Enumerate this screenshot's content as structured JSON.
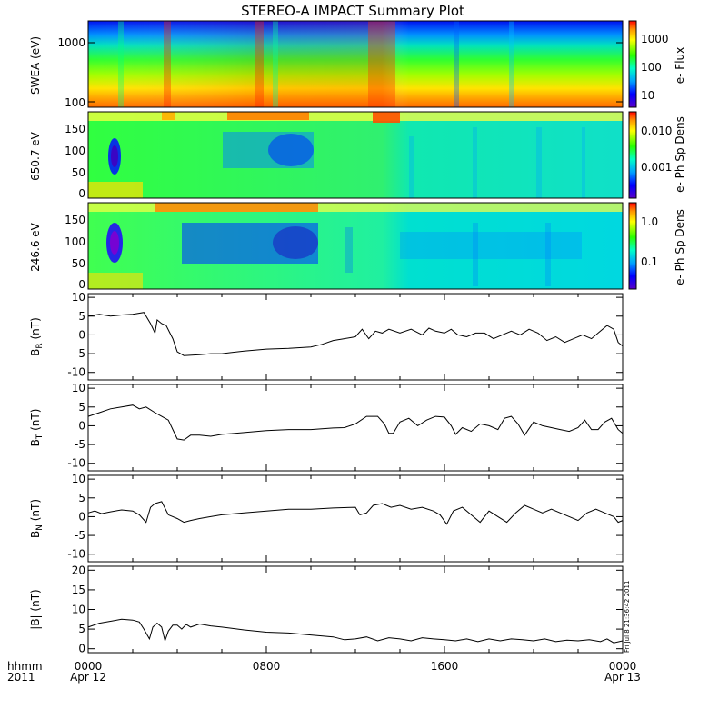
{
  "chart_data": {
    "type": "multi-panel",
    "title": "STEREO-A IMPACT Summary Plot",
    "x_axis": {
      "row1_label": "hhmm",
      "row2_label": "2011",
      "tick_labels": [
        "0000",
        "0800",
        "1600",
        "0000"
      ],
      "date_labels": [
        "Apr 12",
        "",
        "",
        "Apr 13"
      ],
      "range_hours": [
        0,
        24
      ]
    },
    "timestamp": "Fri Jul  8 21:36:42 2011",
    "spectrograms": [
      {
        "ylabel": "SWEA (eV)",
        "ytick_labels": [
          "1000",
          "100"
        ],
        "ytick_values": [
          1000,
          100
        ],
        "yscale": "log",
        "ylim": [
          90,
          2000
        ],
        "colorbar_label": "e- Flux",
        "colorbar_tick_labels": [
          "1000",
          "100",
          "10"
        ],
        "colorbar_scale": "log"
      },
      {
        "ylabel": "650.7 eV",
        "ytick_labels": [
          "150",
          "100",
          "50",
          "0"
        ],
        "ytick_values": [
          150,
          100,
          50,
          0
        ],
        "ylim": [
          -10,
          180
        ],
        "colorbar_label": "e- Ph Sp Dens",
        "colorbar_tick_labels": [
          "0.010",
          "0.001"
        ],
        "colorbar_scale": "log"
      },
      {
        "ylabel": "246.6 eV",
        "ytick_labels": [
          "150",
          "100",
          "50",
          "0"
        ],
        "ytick_values": [
          150,
          100,
          50,
          0
        ],
        "ylim": [
          -10,
          180
        ],
        "colorbar_label": "e- Ph Sp Dens",
        "colorbar_tick_labels": [
          "1.0",
          "0.1"
        ],
        "colorbar_scale": "log"
      }
    ],
    "line_panels": [
      {
        "id": "br",
        "ylabel": "B",
        "ylabel_sub": "R",
        "ylabel_suffix": " (nT)",
        "ylim": [
          -12,
          11
        ],
        "ytick_labels": [
          "10",
          "5",
          "0",
          "-5",
          "-10"
        ],
        "ytick_values": [
          10,
          5,
          0,
          -5,
          -10
        ],
        "points": [
          [
            0,
            5.0
          ],
          [
            0.5,
            5.5
          ],
          [
            1.0,
            5.0
          ],
          [
            1.5,
            5.3
          ],
          [
            2.0,
            5.5
          ],
          [
            2.5,
            6.0
          ],
          [
            2.8,
            3.0
          ],
          [
            3.0,
            0.5
          ],
          [
            3.1,
            4.0
          ],
          [
            3.3,
            3.0
          ],
          [
            3.5,
            2.5
          ],
          [
            3.8,
            -1.0
          ],
          [
            4.0,
            -4.5
          ],
          [
            4.3,
            -5.5
          ],
          [
            5.0,
            -5.3
          ],
          [
            5.5,
            -5.0
          ],
          [
            6.0,
            -5.0
          ],
          [
            7.0,
            -4.3
          ],
          [
            8.0,
            -3.8
          ],
          [
            9.0,
            -3.6
          ],
          [
            10.0,
            -3.2
          ],
          [
            10.5,
            -2.5
          ],
          [
            11.0,
            -1.5
          ],
          [
            11.5,
            -1.0
          ],
          [
            12.0,
            -0.5
          ],
          [
            12.3,
            1.5
          ],
          [
            12.6,
            -1.0
          ],
          [
            12.9,
            1.0
          ],
          [
            13.2,
            0.5
          ],
          [
            13.5,
            1.5
          ],
          [
            14.0,
            0.5
          ],
          [
            14.5,
            1.5
          ],
          [
            15.0,
            0.0
          ],
          [
            15.3,
            1.8
          ],
          [
            15.6,
            1.0
          ],
          [
            16.0,
            0.5
          ],
          [
            16.3,
            1.5
          ],
          [
            16.6,
            0.0
          ],
          [
            17.0,
            -0.5
          ],
          [
            17.4,
            0.5
          ],
          [
            17.8,
            0.5
          ],
          [
            18.2,
            -1.0
          ],
          [
            18.6,
            0.0
          ],
          [
            19.0,
            1.0
          ],
          [
            19.4,
            0.0
          ],
          [
            19.8,
            1.5
          ],
          [
            20.2,
            0.5
          ],
          [
            20.6,
            -1.5
          ],
          [
            21.0,
            -0.5
          ],
          [
            21.4,
            -2.0
          ],
          [
            21.8,
            -1.0
          ],
          [
            22.2,
            0.0
          ],
          [
            22.6,
            -1.0
          ],
          [
            23.0,
            1.0
          ],
          [
            23.3,
            2.5
          ],
          [
            23.6,
            1.5
          ],
          [
            23.8,
            -2.0
          ],
          [
            24.0,
            -3.0
          ]
        ]
      },
      {
        "id": "bt",
        "ylabel": "B",
        "ylabel_sub": "T",
        "ylabel_suffix": " (nT)",
        "ylim": [
          -12,
          11
        ],
        "ytick_labels": [
          "10",
          "5",
          "0",
          "-5",
          "-10"
        ],
        "ytick_values": [
          10,
          5,
          0,
          -5,
          -10
        ],
        "points": [
          [
            0,
            2.5
          ],
          [
            0.5,
            3.5
          ],
          [
            1.0,
            4.5
          ],
          [
            1.5,
            5.0
          ],
          [
            2.0,
            5.5
          ],
          [
            2.3,
            4.5
          ],
          [
            2.6,
            5.0
          ],
          [
            3.0,
            3.5
          ],
          [
            3.3,
            2.5
          ],
          [
            3.6,
            1.5
          ],
          [
            3.8,
            -1.0
          ],
          [
            4.0,
            -3.5
          ],
          [
            4.3,
            -3.8
          ],
          [
            4.6,
            -2.5
          ],
          [
            5.0,
            -2.5
          ],
          [
            5.5,
            -2.8
          ],
          [
            6.0,
            -2.3
          ],
          [
            7.0,
            -1.8
          ],
          [
            8.0,
            -1.3
          ],
          [
            9.0,
            -1.0
          ],
          [
            10.0,
            -1.0
          ],
          [
            11.0,
            -0.6
          ],
          [
            11.5,
            -0.5
          ],
          [
            12.0,
            0.5
          ],
          [
            12.5,
            2.5
          ],
          [
            13.0,
            2.5
          ],
          [
            13.3,
            0.5
          ],
          [
            13.5,
            -2.0
          ],
          [
            13.7,
            -2.0
          ],
          [
            14.0,
            1.0
          ],
          [
            14.4,
            2.0
          ],
          [
            14.8,
            0.0
          ],
          [
            15.2,
            1.5
          ],
          [
            15.6,
            2.5
          ],
          [
            16.0,
            2.3
          ],
          [
            16.3,
            0.0
          ],
          [
            16.5,
            -2.3
          ],
          [
            16.8,
            -0.5
          ],
          [
            17.2,
            -1.5
          ],
          [
            17.6,
            0.5
          ],
          [
            18.0,
            0.0
          ],
          [
            18.4,
            -1.0
          ],
          [
            18.7,
            2.0
          ],
          [
            19.0,
            2.5
          ],
          [
            19.3,
            0.5
          ],
          [
            19.6,
            -2.5
          ],
          [
            20.0,
            1.0
          ],
          [
            20.4,
            0.0
          ],
          [
            20.8,
            -0.5
          ],
          [
            21.2,
            -1.0
          ],
          [
            21.6,
            -1.5
          ],
          [
            22.0,
            -0.5
          ],
          [
            22.3,
            1.5
          ],
          [
            22.6,
            -1.0
          ],
          [
            22.9,
            -1.0
          ],
          [
            23.2,
            1.0
          ],
          [
            23.5,
            2.0
          ],
          [
            23.8,
            -1.0
          ],
          [
            24.0,
            -2.0
          ]
        ]
      },
      {
        "id": "bn",
        "ylabel": "B",
        "ylabel_sub": "N",
        "ylabel_suffix": " (nT)",
        "ylim": [
          -12,
          11
        ],
        "ytick_labels": [
          "10",
          "5",
          "0",
          "-5",
          "-10"
        ],
        "ytick_values": [
          10,
          5,
          0,
          -5,
          -10
        ],
        "points": [
          [
            0,
            1.0
          ],
          [
            0.3,
            1.5
          ],
          [
            0.6,
            0.8
          ],
          [
            1.0,
            1.3
          ],
          [
            1.5,
            1.8
          ],
          [
            2.0,
            1.5
          ],
          [
            2.3,
            0.5
          ],
          [
            2.6,
            -1.5
          ],
          [
            2.8,
            2.5
          ],
          [
            3.0,
            3.5
          ],
          [
            3.3,
            4.0
          ],
          [
            3.6,
            0.5
          ],
          [
            4.0,
            -0.5
          ],
          [
            4.3,
            -1.5
          ],
          [
            4.6,
            -1.0
          ],
          [
            5.0,
            -0.5
          ],
          [
            5.5,
            0.0
          ],
          [
            6.0,
            0.5
          ],
          [
            7.0,
            1.0
          ],
          [
            8.0,
            1.5
          ],
          [
            9.0,
            2.0
          ],
          [
            10.0,
            2.0
          ],
          [
            11.0,
            2.3
          ],
          [
            12.0,
            2.5
          ],
          [
            12.2,
            0.5
          ],
          [
            12.5,
            1.0
          ],
          [
            12.8,
            3.0
          ],
          [
            13.2,
            3.5
          ],
          [
            13.6,
            2.5
          ],
          [
            14.0,
            3.0
          ],
          [
            14.5,
            2.0
          ],
          [
            15.0,
            2.5
          ],
          [
            15.5,
            1.5
          ],
          [
            15.8,
            0.5
          ],
          [
            16.1,
            -2.0
          ],
          [
            16.4,
            1.5
          ],
          [
            16.8,
            2.5
          ],
          [
            17.2,
            0.5
          ],
          [
            17.6,
            -1.5
          ],
          [
            18.0,
            1.5
          ],
          [
            18.4,
            0.0
          ],
          [
            18.8,
            -1.5
          ],
          [
            19.2,
            1.0
          ],
          [
            19.6,
            3.0
          ],
          [
            20.0,
            2.0
          ],
          [
            20.4,
            1.0
          ],
          [
            20.8,
            2.0
          ],
          [
            21.2,
            1.0
          ],
          [
            21.6,
            0.0
          ],
          [
            22.0,
            -1.0
          ],
          [
            22.4,
            1.0
          ],
          [
            22.8,
            2.0
          ],
          [
            23.2,
            1.0
          ],
          [
            23.6,
            0.0
          ],
          [
            23.8,
            -1.5
          ],
          [
            24.0,
            -1.0
          ]
        ]
      },
      {
        "id": "bmag",
        "ylabel": "|B|",
        "ylabel_sub": "",
        "ylabel_suffix": " (nT)",
        "ylim": [
          -1,
          21
        ],
        "ytick_labels": [
          "20",
          "15",
          "10",
          "5",
          "0"
        ],
        "ytick_values": [
          20,
          15,
          10,
          5,
          0
        ],
        "points": [
          [
            0,
            5.5
          ],
          [
            0.5,
            6.5
          ],
          [
            1.0,
            7.0
          ],
          [
            1.5,
            7.5
          ],
          [
            2.0,
            7.3
          ],
          [
            2.3,
            6.8
          ],
          [
            2.5,
            5.0
          ],
          [
            2.6,
            4.0
          ],
          [
            2.75,
            2.5
          ],
          [
            2.9,
            5.5
          ],
          [
            3.1,
            6.5
          ],
          [
            3.3,
            5.5
          ],
          [
            3.45,
            2.0
          ],
          [
            3.6,
            4.5
          ],
          [
            3.8,
            6.0
          ],
          [
            4.0,
            6.0
          ],
          [
            4.2,
            5.0
          ],
          [
            4.4,
            6.2
          ],
          [
            4.6,
            5.5
          ],
          [
            5.0,
            6.3
          ],
          [
            5.5,
            5.8
          ],
          [
            6.0,
            5.5
          ],
          [
            7.0,
            4.8
          ],
          [
            8.0,
            4.2
          ],
          [
            9.0,
            4.0
          ],
          [
            10.0,
            3.5
          ],
          [
            11.0,
            3.0
          ],
          [
            11.5,
            2.3
          ],
          [
            12.0,
            2.5
          ],
          [
            12.5,
            3.0
          ],
          [
            13.0,
            2.0
          ],
          [
            13.5,
            2.8
          ],
          [
            14.0,
            2.5
          ],
          [
            14.5,
            2.0
          ],
          [
            15.0,
            2.8
          ],
          [
            15.5,
            2.5
          ],
          [
            16.0,
            2.3
          ],
          [
            16.5,
            2.0
          ],
          [
            17.0,
            2.5
          ],
          [
            17.5,
            1.8
          ],
          [
            18.0,
            2.5
          ],
          [
            18.5,
            2.0
          ],
          [
            19.0,
            2.5
          ],
          [
            19.5,
            2.3
          ],
          [
            20.0,
            2.0
          ],
          [
            20.5,
            2.5
          ],
          [
            21.0,
            1.8
          ],
          [
            21.5,
            2.2
          ],
          [
            22.0,
            2.0
          ],
          [
            22.5,
            2.3
          ],
          [
            23.0,
            1.8
          ],
          [
            23.3,
            2.5
          ],
          [
            23.6,
            1.5
          ],
          [
            24.0,
            2.0
          ]
        ]
      }
    ]
  },
  "colors": {
    "line": "#000000",
    "axes": "#000000",
    "background": "#ffffff"
  }
}
